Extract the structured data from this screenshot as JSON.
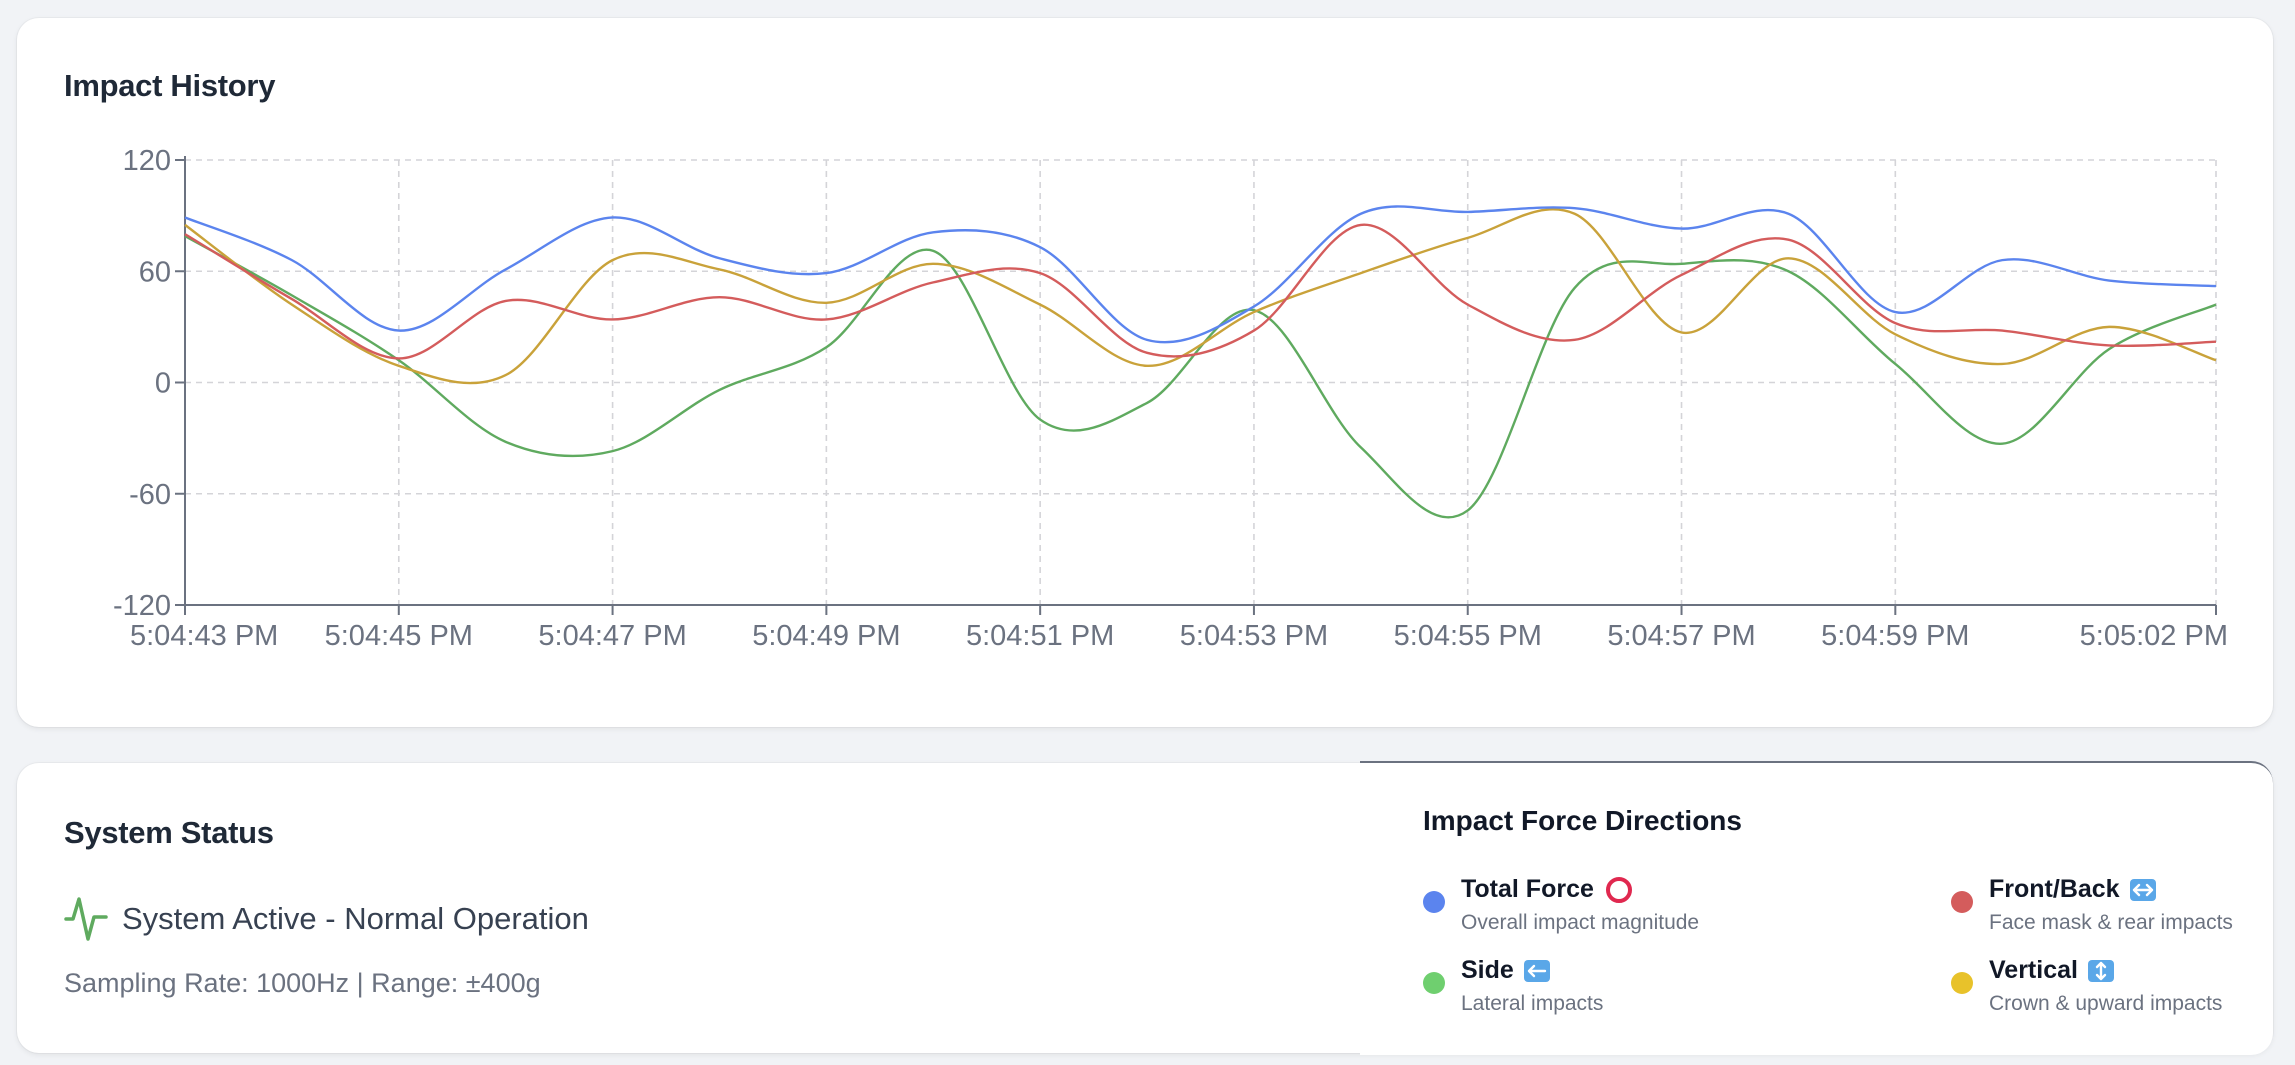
{
  "chart_card": {
    "title": "Impact History"
  },
  "chart_data": {
    "type": "line",
    "title": "Impact History",
    "xlabel": "",
    "ylabel": "",
    "ylim": [
      -120,
      120
    ],
    "yticks": [
      -120,
      -60,
      0,
      60,
      120
    ],
    "grid": true,
    "x_tick_labels": [
      "5:04:43 PM",
      "5:04:45 PM",
      "5:04:47 PM",
      "5:04:49 PM",
      "5:04:51 PM",
      "5:04:53 PM",
      "5:04:55 PM",
      "5:04:57 PM",
      "5:04:59 PM",
      "5:05:02 PM"
    ],
    "x": [
      0,
      1,
      2,
      3,
      4,
      5,
      6,
      7,
      8,
      9,
      10,
      11,
      12,
      13,
      14,
      15,
      16,
      17,
      18,
      19
    ],
    "series": [
      {
        "name": "Total Force",
        "color": "#5b84ee",
        "values": [
          89,
          66,
          28,
          61,
          89,
          67,
          59,
          81,
          73,
          23,
          41,
          91,
          92,
          94,
          83,
          91,
          38,
          66,
          55,
          52
        ]
      },
      {
        "name": "Front/Back",
        "color": "#d45c5c",
        "values": [
          80,
          45,
          13,
          44,
          34,
          46,
          34,
          54,
          59,
          16,
          28,
          85,
          42,
          23,
          58,
          77,
          32,
          28,
          20,
          22
        ]
      },
      {
        "name": "Side",
        "color": "#5faa5f",
        "values": [
          79,
          47,
          12,
          -32,
          -37,
          -4,
          19,
          71,
          -20,
          -11,
          39,
          -35,
          -69,
          51,
          64,
          60,
          10,
          -33,
          18,
          42
        ]
      },
      {
        "name": "Vertical",
        "color": "#c9a23a",
        "values": [
          85,
          42,
          9,
          4,
          66,
          61,
          43,
          64,
          42,
          9,
          38,
          59,
          78,
          91,
          27,
          67,
          26,
          10,
          30,
          12
        ]
      }
    ]
  },
  "status": {
    "title": "System Status",
    "active_text": "System Active - Normal Operation",
    "sampling_text": "Sampling Rate: 1000Hz | Range: ±400g",
    "status_color": "#5faa5f"
  },
  "legend": {
    "title": "Impact Force Directions",
    "items": [
      {
        "name": "Total Force",
        "desc": "Overall impact magnitude",
        "color": "#5b84ee",
        "icon": "ring-icon"
      },
      {
        "name": "Front/Back",
        "desc": "Face mask & rear impacts",
        "color": "#d45c5c",
        "icon": "left-right-arrow-icon"
      },
      {
        "name": "Side",
        "desc": "Lateral impacts",
        "color": "#6fcf6f",
        "icon": "left-arrow-icon"
      },
      {
        "name": "Vertical",
        "desc": "Crown & upward impacts",
        "color": "#e8c22a",
        "icon": "up-down-arrow-icon"
      }
    ]
  }
}
